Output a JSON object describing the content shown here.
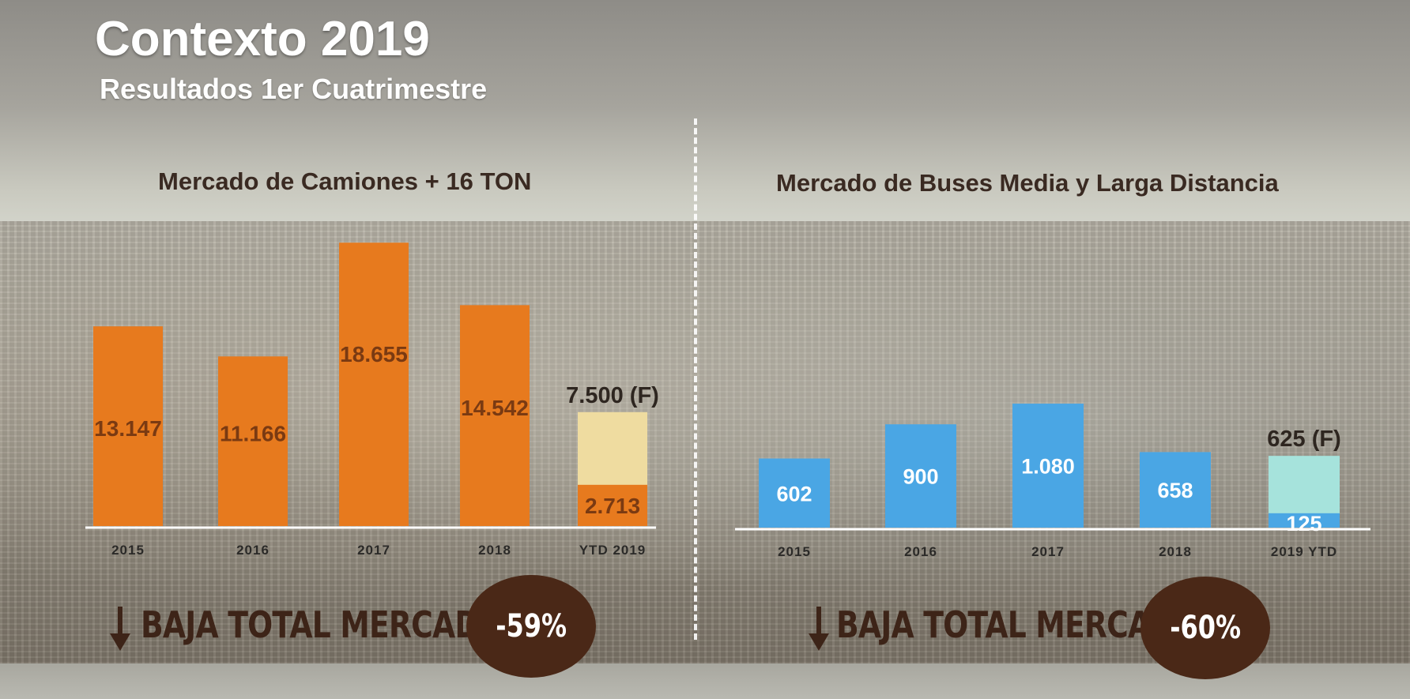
{
  "title": "Contexto 2019",
  "subtitle": "Resultados 1er Cuatrimestre",
  "colors": {
    "trucks_bar": "#e77a1e",
    "trucks_forecast": "#efdca0",
    "buses_bar": "#4aa6e4",
    "buses_forecast": "#a6e3dc",
    "circle": "#4a2817",
    "heading": "#3a2a22"
  },
  "chart_data": [
    {
      "type": "bar",
      "title": "Mercado de Camiones + 16 TON",
      "categories": [
        "2015",
        "2016",
        "2017",
        "2018",
        "YTD 2019"
      ],
      "values": [
        13147,
        11166,
        18655,
        14542,
        2713
      ],
      "value_labels": [
        "13.147",
        "11.166",
        "18.655",
        "14.542",
        "2.713"
      ],
      "forecast": {
        "category": "YTD 2019",
        "value": 7500,
        "label": "7.500 (F)"
      },
      "ylim": [
        0,
        19500
      ],
      "grid": false,
      "summary": {
        "label": "BAJA TOTAL MERCADO",
        "value": "-59%",
        "arrow_icon": "down-arrow-icon"
      }
    },
    {
      "type": "bar",
      "title": "Mercado de Buses Media y Larga Distancia",
      "categories": [
        "2015",
        "2016",
        "2017",
        "2018",
        "2019 YTD"
      ],
      "values": [
        602,
        900,
        1080,
        658,
        125
      ],
      "value_labels": [
        "602",
        "900",
        "1.080",
        "658",
        "125"
      ],
      "forecast": {
        "category": "2019 YTD",
        "value": 625,
        "label": "625 (F)"
      },
      "ylim": [
        0,
        1500
      ],
      "grid": false,
      "summary": {
        "label": "BAJA TOTAL MERCADO",
        "value": "-60%",
        "arrow_icon": "down-arrow-icon"
      }
    }
  ]
}
